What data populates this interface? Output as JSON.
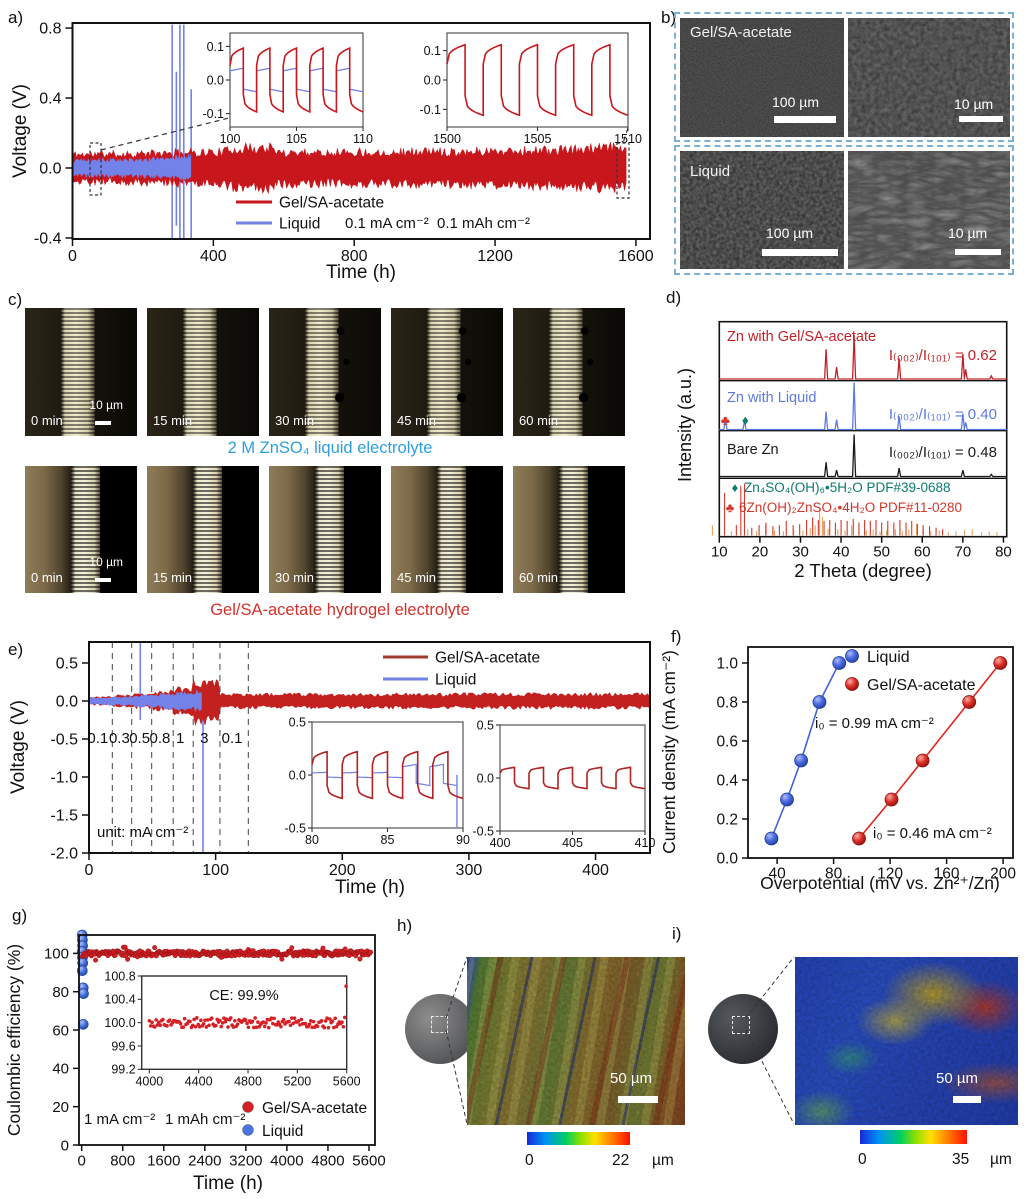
{
  "colors": {
    "red_trace": "#c8161d",
    "blue_trace": "#7282e8",
    "dark_red": "#a33a30",
    "caption_blue": "#2d9fe0",
    "caption_red": "#d3312b",
    "dashed_box_blue": "#7ab0d4"
  },
  "panel_labels": {
    "a": "a)",
    "b": "b)",
    "c": "c)",
    "d": "d)",
    "e": "e)",
    "f": "f)",
    "g": "g)",
    "h": "h)",
    "i": "i)"
  },
  "chart_data": [
    {
      "id": "a",
      "type": "line",
      "xlabel": "Time (h)",
      "ylabel": "Voltage (V)",
      "xlim": [
        0,
        1640
      ],
      "ylim": [
        -0.406,
        0.829
      ],
      "xticks": [
        "0",
        "400",
        "800",
        "1200",
        "1600"
      ],
      "yticks": [
        "-0.4",
        "0.0",
        "0.4",
        "0.8"
      ],
      "legend": [
        {
          "label": "Gel/SA-acetate",
          "color": "#c8161d"
        },
        {
          "label": "Liquid",
          "color": "#7282e8"
        }
      ],
      "annotations": [
        "0.1 mA cm⁻²",
        "0.1 mAh cm⁻²"
      ],
      "series": [
        {
          "name": "Gel/SA-acetate",
          "color": "#c8161d",
          "x_end": 1572,
          "band_envelope": [
            [
              0,
              0.085
            ],
            [
              250,
              0.09
            ],
            [
              330,
              0.098
            ],
            [
              430,
              0.1
            ],
            [
              455,
              0.12
            ],
            [
              560,
              0.128
            ],
            [
              575,
              0.1
            ],
            [
              900,
              0.1
            ],
            [
              1150,
              0.105
            ],
            [
              1400,
              0.112
            ],
            [
              1555,
              0.13
            ],
            [
              1572,
              0.12
            ]
          ]
        },
        {
          "name": "Liquid",
          "color": "#7282e8",
          "x_end": 337,
          "band_envelope": [
            [
              0,
              0.045
            ],
            [
              200,
              0.05
            ],
            [
              270,
              0.06
            ],
            [
              337,
              0.07
            ]
          ],
          "spikes": [
            [
              283,
              0.82,
              -0.4
            ],
            [
              295,
              0.55,
              -0.33
            ],
            [
              305,
              0.82,
              -0.4
            ],
            [
              316,
              0.82,
              -0.4
            ],
            [
              337,
              0.45,
              -0.4
            ]
          ]
        }
      ],
      "insets": [
        {
          "xlim": [
            100,
            110
          ],
          "ylim": [
            -0.14,
            0.14
          ],
          "xticks": [
            "100",
            "105",
            "110"
          ],
          "yticks": [
            "0.1",
            "0.0",
            "-0.1"
          ],
          "red_amp": 0.095,
          "blue_amp": 0.035,
          "period": 2
        },
        {
          "xlim": [
            1500,
            1510
          ],
          "ylim": [
            -0.16,
            0.16
          ],
          "xticks": [
            "1500",
            "1505",
            "1510"
          ],
          "yticks": [
            "0.1",
            "0.0",
            "-0.1"
          ],
          "red_amp": 0.12,
          "blue_amp": 0,
          "period": 2
        }
      ]
    },
    {
      "id": "d",
      "type": "xrd",
      "xlabel": "2 Theta (degree)",
      "ylabel": "Intensity (a.u.)",
      "xlim": [
        10,
        80.8
      ],
      "xticks": [
        "10",
        "20",
        "30",
        "40",
        "50",
        "60",
        "70",
        "80"
      ],
      "traces": [
        {
          "name": "Zn with Gel/SA-acetate",
          "color": "#c22127",
          "ratio_label": "I₍₀₀₂₎/I₍₁₀₁₎ = 0.62",
          "hmax": 44,
          "peaks": [
            [
              36.3,
              0.68
            ],
            [
              38.9,
              0.27
            ],
            [
              43.2,
              1.0
            ],
            [
              54.3,
              0.47
            ],
            [
              70.0,
              0.57
            ],
            [
              70.7,
              0.22
            ],
            [
              77.0,
              0.07
            ]
          ]
        },
        {
          "name": "Zn with Liquid",
          "color": "#5d79e4",
          "ratio_label": "I₍₀₀₂₎/I₍₁₀₁₎ = 0.40",
          "hmax": 47,
          "peaks": [
            [
              11.5,
              0.26
            ],
            [
              16.2,
              0.19
            ],
            [
              36.3,
              0.38
            ],
            [
              38.9,
              0.21
            ],
            [
              43.2,
              1.0
            ],
            [
              54.3,
              0.28
            ],
            [
              70.0,
              0.34
            ],
            [
              70.7,
              0.15
            ]
          ],
          "markers": [
            {
              "glyph": "♣",
              "color": "#d4372a",
              "x": 11.5
            },
            {
              "glyph": "♦",
              "color": "#0c7b70",
              "x": 16.4
            }
          ]
        },
        {
          "name": "Bare Zn",
          "color": "#1a1a1a",
          "ratio_label": "I₍₀₀₂₎/I₍₁₀₁₎ = 0.48",
          "hmax": 42,
          "peaks": [
            [
              36.3,
              0.34
            ],
            [
              38.9,
              0.15
            ],
            [
              43.2,
              1.0
            ],
            [
              54.3,
              0.2
            ],
            [
              70.0,
              0.15
            ],
            [
              77.0,
              0.05
            ]
          ]
        }
      ],
      "references": [
        {
          "glyph": "♦",
          "color": "#0c7b70",
          "label": "Zn₄SO₄(OH)₆•5H₂O PDF#39-0688",
          "stick_color": "#e8a254",
          "stick_hmax": 34,
          "sticks": [
            [
              8.3,
              0.3
            ],
            [
              13.0,
              0.12
            ],
            [
              17.0,
              0.18
            ],
            [
              19.2,
              0.12
            ],
            [
              21.4,
              0.3
            ],
            [
              23.6,
              0.15
            ],
            [
              25.8,
              0.12
            ],
            [
              28.3,
              0.18
            ],
            [
              30.6,
              0.15
            ],
            [
              32.4,
              0.22
            ],
            [
              33.6,
              0.3
            ],
            [
              34.7,
              0.8
            ],
            [
              35.4,
              0.55
            ],
            [
              36.8,
              0.2
            ],
            [
              39.2,
              0.18
            ],
            [
              41.0,
              0.15
            ],
            [
              42.6,
              0.3
            ],
            [
              44.4,
              0.18
            ],
            [
              46.2,
              0.15
            ],
            [
              47.9,
              0.18
            ],
            [
              49.6,
              0.12
            ],
            [
              51.2,
              0.15
            ],
            [
              53.4,
              0.18
            ],
            [
              55.1,
              0.12
            ],
            [
              56.7,
              0.18
            ],
            [
              58.6,
              0.35
            ],
            [
              60.3,
              0.18
            ],
            [
              62.1,
              0.12
            ],
            [
              64.2,
              0.15
            ],
            [
              66.4,
              0.1
            ],
            [
              68.3,
              0.12
            ],
            [
              70.4,
              0.15
            ],
            [
              72.3,
              0.18
            ],
            [
              74.6,
              0.1
            ],
            [
              76.5,
              0.12
            ],
            [
              78.4,
              0.1
            ]
          ]
        },
        {
          "glyph": "♣",
          "color": "#d4372a",
          "label": "6Zn(OH)₂ZnSO₄•4H₂O PDF#11-0280",
          "stick_color": "#d4372a",
          "stick_hmax": 52,
          "sticks": [
            [
              11.3,
              0.82
            ],
            [
              14.2,
              0.2
            ],
            [
              15.3,
              0.95
            ],
            [
              16.2,
              1.0
            ],
            [
              18.0,
              0.15
            ],
            [
              19.8,
              0.2
            ],
            [
              21.5,
              0.25
            ],
            [
              23.2,
              0.18
            ],
            [
              24.8,
              0.2
            ],
            [
              26.5,
              0.28
            ],
            [
              28.2,
              0.2
            ],
            [
              29.8,
              0.22
            ],
            [
              31.5,
              0.3
            ],
            [
              33.0,
              0.35
            ],
            [
              34.4,
              0.3
            ],
            [
              35.8,
              0.28
            ],
            [
              37.2,
              0.3
            ],
            [
              38.6,
              0.25
            ],
            [
              40.0,
              0.3
            ],
            [
              41.5,
              0.28
            ],
            [
              43.0,
              0.32
            ],
            [
              44.4,
              0.25
            ],
            [
              45.8,
              0.3
            ],
            [
              47.2,
              0.28
            ],
            [
              48.6,
              0.3
            ],
            [
              50.0,
              0.25
            ],
            [
              51.5,
              0.28
            ],
            [
              53.0,
              0.25
            ],
            [
              54.5,
              0.3
            ],
            [
              56.0,
              0.25
            ],
            [
              57.4,
              0.28
            ],
            [
              58.8,
              0.22
            ],
            [
              60.2,
              0.2
            ],
            [
              61.8,
              0.18
            ],
            [
              63.4,
              0.15
            ],
            [
              65.0,
              0.12
            ]
          ]
        }
      ]
    },
    {
      "id": "e",
      "type": "line",
      "xlabel": "Time (h)",
      "ylabel": "Voltage (V)",
      "xlim": [
        0,
        443
      ],
      "ylim": [
        -2.0,
        0.776
      ],
      "xticks": [
        "0",
        "100",
        "200",
        "300",
        "400"
      ],
      "yticks": [
        "0.5",
        "0.0",
        "-0.5",
        "-1.0",
        "-1.5",
        "-2.0"
      ],
      "legend": [
        {
          "label": "Gel/SA-acetate",
          "color": "#a33a30"
        },
        {
          "label": "Liquid",
          "color": "#7282e8"
        }
      ],
      "unit_label": "unit: mA cm⁻²",
      "rate_boundaries": [
        18.4,
        33.7,
        49.5,
        66.5,
        82.3,
        103.4,
        125.8
      ],
      "rate_labels": [
        {
          "t": "0.1",
          "x": 7
        },
        {
          "t": "0.3",
          "x": 24
        },
        {
          "t": "0.5",
          "x": 40
        },
        {
          "t": "0.8",
          "x": 56
        },
        {
          "t": "1",
          "x": 72
        },
        {
          "t": "3",
          "x": 91
        },
        {
          "t": "0.1",
          "x": 113
        }
      ],
      "red_envelope": [
        [
          0,
          0.05
        ],
        [
          18.4,
          0.052
        ],
        [
          18.5,
          0.07
        ],
        [
          33.7,
          0.072
        ],
        [
          33.8,
          0.09
        ],
        [
          49.5,
          0.092
        ],
        [
          49.6,
          0.12
        ],
        [
          66.5,
          0.125
        ],
        [
          66.6,
          0.16
        ],
        [
          82.3,
          0.17
        ],
        [
          82.4,
          0.28
        ],
        [
          103.4,
          0.29
        ],
        [
          103.5,
          0.09
        ],
        [
          443,
          0.095
        ]
      ],
      "blue_envelope": [
        [
          0,
          0.038
        ],
        [
          18.4,
          0.05
        ],
        [
          33.7,
          0.06
        ],
        [
          49.5,
          0.075
        ],
        [
          66.5,
          0.1
        ],
        [
          82.3,
          0.12
        ],
        [
          90,
          0.13
        ]
      ],
      "blue_spikes": [
        [
          40.5,
          0.776,
          -0.25
        ],
        [
          90,
          0.1,
          -2.0
        ]
      ],
      "insets": [
        {
          "xlim": [
            80,
            90
          ],
          "ylim": [
            -0.5,
            0.5
          ],
          "xticks": [
            "80",
            "85",
            "90"
          ],
          "yticks": [
            "0.5",
            "0.0",
            "-0.5"
          ],
          "red_amp": 0.22,
          "blue_amp": 0,
          "period": 2,
          "blue": {
            "flat_until": 86,
            "flat_amp": 0.025,
            "sq_amp": 0.1,
            "drop_at": 89.6
          }
        },
        {
          "xlim": [
            400,
            410
          ],
          "ylim": [
            -0.5,
            0.5
          ],
          "xticks": [
            "400",
            "405",
            "410"
          ],
          "yticks": [
            "0.5",
            "0.0",
            "-0.5"
          ],
          "red_amp": 0.1,
          "blue_amp": 0,
          "period": 2
        }
      ]
    },
    {
      "id": "f",
      "type": "scatter",
      "xlabel": "Overpotential (mV vs. Zn²⁺/Zn)",
      "ylabel": "Current density (mA cm⁻²)",
      "xlim": [
        19.4,
        207
      ],
      "ylim": [
        0,
        1.082
      ],
      "xticks": [
        "40",
        "80",
        "120",
        "160",
        "200"
      ],
      "yticks": [
        "0.0",
        "0.2",
        "0.4",
        "0.6",
        "0.8",
        "1.0"
      ],
      "series": [
        {
          "name": "Liquid",
          "color": "#3f62d9",
          "edge": "#1c3a9e",
          "points": [
            [
              36,
              0.1
            ],
            [
              47,
              0.3
            ],
            [
              57,
              0.5
            ],
            [
              70,
              0.8
            ],
            [
              84,
              1.0
            ]
          ],
          "annotation": "i₀ = 0.99 mA cm⁻²"
        },
        {
          "name": "Gel/SA-acetate",
          "color": "#e0251d",
          "edge": "#8e120e",
          "points": [
            [
              98,
              0.1
            ],
            [
              121,
              0.3
            ],
            [
              143,
              0.5
            ],
            [
              176,
              0.8
            ],
            [
              198,
              1.0
            ]
          ],
          "annotation": "i₀ = 0.46 mA cm⁻²"
        }
      ]
    },
    {
      "id": "g",
      "type": "scatter",
      "xlabel": "Time (h)",
      "ylabel": "Coulombic efficiency (%)",
      "xlim": [
        -52,
        5717
      ],
      "ylim": [
        0,
        109.6
      ],
      "xticks": [
        "0",
        "800",
        "1600",
        "2400",
        "3200",
        "4000",
        "4800",
        "5600"
      ],
      "yticks": [
        "0",
        "20",
        "40",
        "60",
        "80",
        "100"
      ],
      "legend": [
        {
          "label": "Gel/SA-acetate",
          "color": "#d62025"
        },
        {
          "label": "Liquid",
          "color": "#4a74e0"
        }
      ],
      "annotations": [
        "1 mA cm⁻²",
        "1 mAh cm⁻²"
      ],
      "red_series": {
        "x_start": 15,
        "x_end": 5640,
        "step": 16,
        "mean": 100,
        "jitter": 1.3
      },
      "blue_points": [
        [
          10,
          110
        ],
        [
          14,
          107
        ],
        [
          18,
          104
        ],
        [
          10,
          101
        ],
        [
          16,
          98
        ],
        [
          20,
          95
        ],
        [
          12,
          91
        ],
        [
          30,
          82
        ],
        [
          36,
          79
        ],
        [
          30,
          63
        ]
      ],
      "inset": {
        "xlim": [
          3938,
          5600
        ],
        "ylim": [
          99.2,
          100.8
        ],
        "xticks": [
          "4000",
          "4400",
          "4800",
          "5200",
          "5600"
        ],
        "yticks": [
          "100.8",
          "100.4",
          "100.0",
          "99.6",
          "99.2"
        ],
        "label": "CE: 99.9%",
        "red": {
          "x_start": 4000,
          "x_end": 5600,
          "step": 11,
          "mean": 100,
          "jitter": 0.09
        }
      }
    }
  ],
  "panel_b": {
    "label_top": "Gel/SA-acetate",
    "label_bottom": "Liquid",
    "scalebar_100": "100 µm",
    "scalebar_10": "10 µm"
  },
  "panel_c": {
    "times": [
      "0 min",
      "15 min",
      "30 min",
      "45 min",
      "60 min"
    ],
    "scalebar": "10 µm",
    "caption_top": "2 M ZnSO₄ liquid electrolyte",
    "caption_bottom": "Gel/SA-acetate hydrogel electrolyte"
  },
  "panel_h": {
    "scalebar": "50 µm",
    "cbar_min": "0",
    "cbar_max": "22",
    "cbar_unit": "µm"
  },
  "panel_i": {
    "scalebar": "50 µm",
    "cbar_min": "0",
    "cbar_max": "35",
    "cbar_unit": "µm"
  }
}
